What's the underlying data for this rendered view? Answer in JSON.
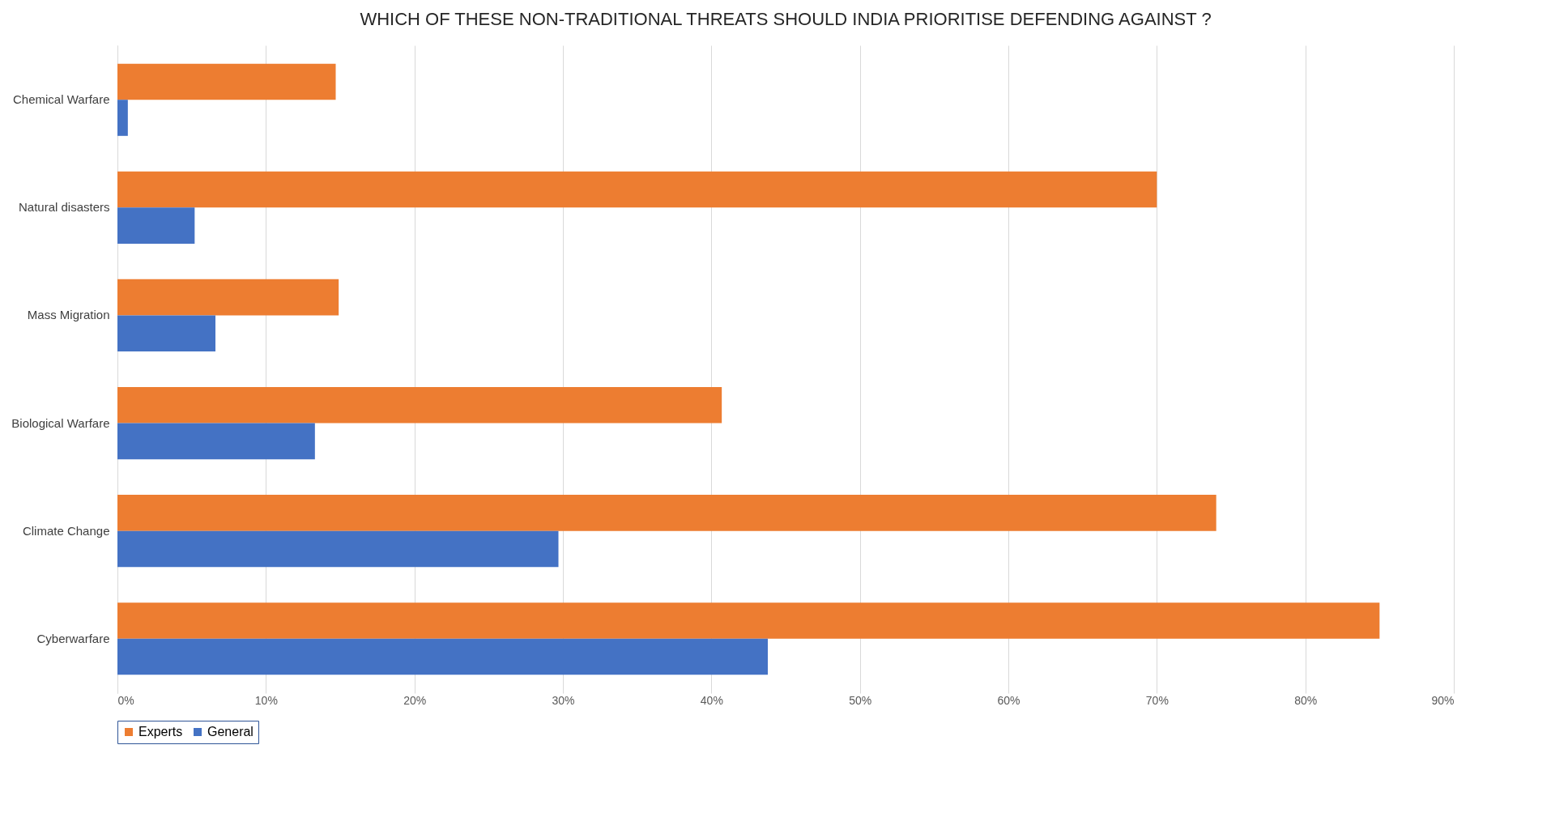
{
  "chart_data": {
    "type": "bar",
    "orientation": "horizontal",
    "title": "WHICH OF THESE NON-TRADITIONAL THREATS SHOULD INDIA PRIORITISE DEFENDING AGAINST ?",
    "categories": [
      "Chemical Warfare",
      "Natural disasters",
      "Mass Migration",
      "Biological Warfare",
      "Climate Change",
      "Cyberwarfare"
    ],
    "series": [
      {
        "name": "Experts",
        "color": "#ed7d31",
        "values": [
          14.7,
          70,
          14.9,
          40.7,
          74,
          85
        ]
      },
      {
        "name": "General",
        "color": "#4472c4",
        "values": [
          0.7,
          5.2,
          6.6,
          13.3,
          29.7,
          43.8
        ]
      }
    ],
    "xlim": [
      0,
      90
    ],
    "xticks": [
      {
        "value": 0,
        "label": "0%"
      },
      {
        "value": 10,
        "label": "10%"
      },
      {
        "value": 20,
        "label": "20%"
      },
      {
        "value": 30,
        "label": "30%"
      },
      {
        "value": 40,
        "label": "40%"
      },
      {
        "value": 50,
        "label": "50%"
      },
      {
        "value": 60,
        "label": "60%"
      },
      {
        "value": 70,
        "label": "70%"
      },
      {
        "value": 80,
        "label": "80%"
      },
      {
        "value": 90,
        "label": "90%"
      }
    ],
    "grid": "x",
    "legend": "bottom"
  }
}
